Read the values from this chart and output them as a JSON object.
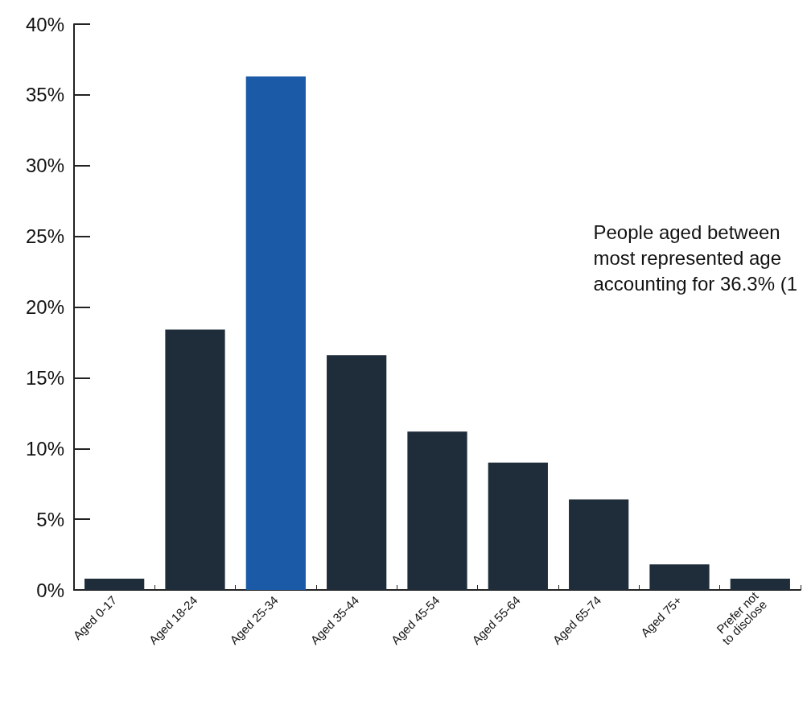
{
  "chart_data": {
    "type": "bar",
    "categories": [
      "Aged 0-17",
      "Aged 18-24",
      "Aged 25-34",
      "Aged 35-44",
      "Aged 45-54",
      "Aged 55-64",
      "Aged 65-74",
      "Aged 75+",
      "Prefer not\nto disclose"
    ],
    "values": [
      0.8,
      18.4,
      36.3,
      16.6,
      11.2,
      9.0,
      6.4,
      1.8,
      0.8
    ],
    "colors": [
      "#1f2d3a",
      "#1f2d3a",
      "#1a5aa6",
      "#1f2d3a",
      "#1f2d3a",
      "#1f2d3a",
      "#1f2d3a",
      "#1f2d3a",
      "#1f2d3a"
    ],
    "ylim": [
      0,
      40
    ],
    "yticks": [
      {
        "value": 0,
        "label": "0%"
      },
      {
        "value": 5,
        "label": "5%"
      },
      {
        "value": 10,
        "label": "10%"
      },
      {
        "value": 15,
        "label": "15%"
      },
      {
        "value": 20,
        "label": "20%"
      },
      {
        "value": 25,
        "label": "25%"
      },
      {
        "value": 30,
        "label": "30%"
      },
      {
        "value": 35,
        "label": "35%"
      },
      {
        "value": 40,
        "label": "40%"
      }
    ],
    "grid": false,
    "annotations": [
      "People aged between\nmost represented age\naccounting for 36.3% (1"
    ]
  }
}
